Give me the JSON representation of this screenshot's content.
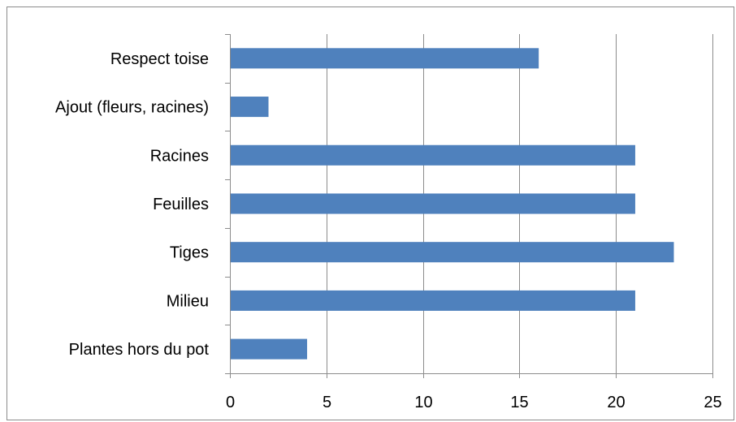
{
  "chart_data": {
    "type": "bar",
    "orientation": "horizontal",
    "categories": [
      "Respect toise",
      "Ajout (fleurs, racines)",
      "Racines",
      "Feuilles",
      "Tiges",
      "Milieu",
      "Plantes hors du pot"
    ],
    "values": [
      16,
      2,
      21,
      21,
      23,
      21,
      4
    ],
    "title": "",
    "xlabel": "",
    "ylabel": "",
    "xlim": [
      0,
      25
    ],
    "x_ticks": [
      "0",
      "5",
      "10",
      "15",
      "20",
      "25"
    ],
    "grid": "vertical",
    "legend": "none",
    "bar_color": "#4F81BD",
    "grid_color": "#8C8C8C"
  }
}
